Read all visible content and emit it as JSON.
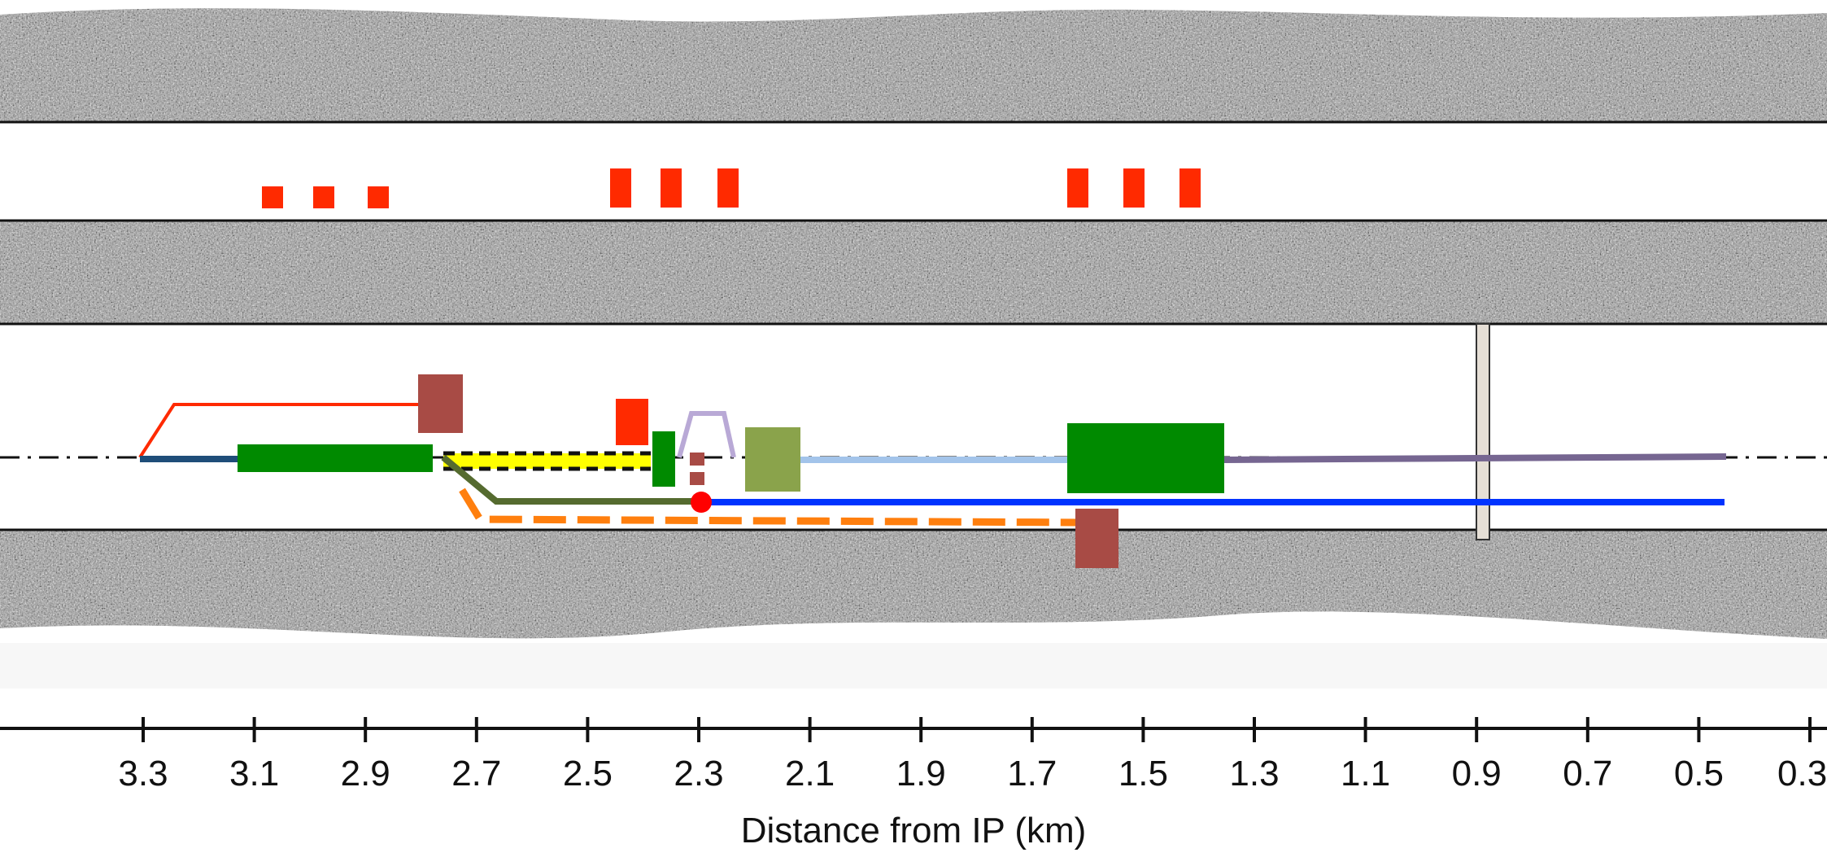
{
  "axis": {
    "label": "Distance from IP (km)",
    "ticks": [
      "3.3",
      "3.1",
      "2.9",
      "2.7",
      "2.5",
      "2.3",
      "2.1",
      "1.9",
      "1.7",
      "1.5",
      "1.3",
      "1.1",
      "0.9",
      "0.7",
      "0.5",
      "0.3"
    ]
  },
  "colors": {
    "rock": "#8c8c8c",
    "red_block": "#ff2a00",
    "brown_block": "#a84b45",
    "dark_green": "#008a00",
    "olive": "#8aa34b",
    "light_blue": "#a3c4ea",
    "purple": "#766691",
    "blue": "#0033ff",
    "orange": "#ff7f0e",
    "yellow": "#ffff00",
    "navy": "#1f4e79",
    "dark_olive": "#556b2f",
    "lavender": "#b9a9d6",
    "shaft": "#e6dfd6"
  }
}
